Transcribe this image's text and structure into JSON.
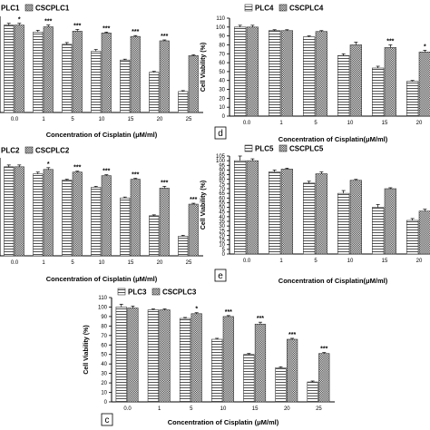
{
  "chart_data": [
    {
      "type": "bar",
      "panel": "",
      "legend": [
        "PLC1",
        "CSCPLC1"
      ],
      "ylabel": "",
      "xlabel": "Concentration of Cisplatin (μM/ml)",
      "categories": [
        "0.0",
        "1",
        "5",
        "10",
        "15",
        "20",
        "25"
      ],
      "ylim": [
        0,
        110
      ],
      "yticks": [],
      "series": [
        {
          "name": "PLC1",
          "values": [
            100,
            92,
            78,
            70,
            60,
            46,
            24
          ],
          "errors": [
            2,
            2,
            2,
            2,
            1,
            1,
            1
          ]
        },
        {
          "name": "CSCPLC1",
          "values": [
            100,
            98,
            93,
            91,
            87,
            82,
            65
          ],
          "errors": [
            2,
            2,
            2,
            1,
            1,
            1,
            1
          ]
        }
      ],
      "annotations": [
        "*",
        "***",
        "***",
        "***",
        "***",
        "***"
      ],
      "grid": false,
      "legend_position": "top-left"
    },
    {
      "type": "bar",
      "panel": "d",
      "legend": [
        "PLC4",
        "CSCPLC4"
      ],
      "ylabel": "Cell Viability (%)",
      "xlabel": "Concentration of Cisplatin(μM/ml)",
      "categories": [
        "0.0",
        "1",
        "5",
        "10",
        "15",
        "20"
      ],
      "ylim": [
        0,
        110
      ],
      "yticks": [
        "0",
        "10",
        "20",
        "30",
        "40",
        "50",
        "60",
        "70",
        "80",
        "90",
        "100",
        "110"
      ],
      "series": [
        {
          "name": "PLC4",
          "values": [
            100,
            96,
            89,
            68,
            54,
            39
          ],
          "errors": [
            2,
            1,
            1,
            2,
            2,
            1
          ]
        },
        {
          "name": "CSCPLC4",
          "values": [
            100,
            96,
            95,
            80,
            77,
            72
          ],
          "errors": [
            2,
            1,
            1,
            3,
            3,
            2
          ]
        }
      ],
      "annotations": [
        "",
        "",
        "",
        "",
        "***",
        "*"
      ],
      "grid": false,
      "legend_position": "top-left"
    },
    {
      "type": "bar",
      "panel": "",
      "legend": [
        "PLC2",
        "CSCPLC2"
      ],
      "ylabel": "",
      "xlabel": "Concentration of Cisplatin (μM/ml)",
      "categories": [
        "0.0",
        "1",
        "5",
        "10",
        "15",
        "20",
        "25"
      ],
      "ylim": [
        0,
        110
      ],
      "yticks": [],
      "series": [
        {
          "name": "PLC2",
          "values": [
            100,
            92,
            85,
            77,
            65,
            45,
            22
          ],
          "errors": [
            2,
            2,
            1,
            1,
            1,
            1,
            1
          ]
        },
        {
          "name": "CSCPLC2",
          "values": [
            100,
            97,
            94,
            90,
            86,
            76,
            58
          ],
          "errors": [
            2,
            2,
            1,
            1,
            1,
            2,
            1
          ]
        }
      ],
      "annotations": [
        "",
        "*",
        "***",
        "***",
        "***",
        "***",
        "***"
      ],
      "grid": false,
      "legend_position": "top-left"
    },
    {
      "type": "bar",
      "panel": "e",
      "legend": [
        "PLC5",
        "CSCPLC5"
      ],
      "ylabel": "Cell Viability (%)",
      "xlabel": "Concentration of Cisplatin(μM/ml)",
      "categories": [
        "0.0",
        "1",
        "5",
        "10",
        "15",
        "20"
      ],
      "ylim": [
        0,
        105
      ],
      "yticks": [
        "0",
        "5",
        "10",
        "15",
        "20",
        "25",
        "30",
        "35",
        "40",
        "45",
        "50",
        "55",
        "60",
        "65",
        "70",
        "75",
        "80",
        "85",
        "90",
        "95",
        "100",
        "105"
      ],
      "series": [
        {
          "name": "PLC5",
          "values": [
            100,
            88,
            76,
            65,
            50,
            36
          ],
          "errors": [
            5,
            2,
            2,
            3,
            3,
            2
          ]
        },
        {
          "name": "CSCPLC5",
          "values": [
            100,
            91,
            86,
            79,
            70,
            46
          ],
          "errors": [
            2,
            1,
            2,
            1,
            1,
            2
          ]
        }
      ],
      "annotations": [],
      "grid": false,
      "legend_position": "top-left"
    },
    {
      "type": "bar",
      "panel": "c",
      "legend": [
        "PLC3",
        "CSCPLC3"
      ],
      "ylabel": "Cell Viability (%)",
      "xlabel": "Concentration of Cisplatin (μM/ml)",
      "categories": [
        "0.0",
        "1",
        "5",
        "10",
        "15",
        "20",
        "25"
      ],
      "ylim": [
        0,
        110
      ],
      "yticks": [
        "0",
        "10",
        "20",
        "30",
        "40",
        "50",
        "60",
        "70",
        "80",
        "90",
        "100",
        "110"
      ],
      "series": [
        {
          "name": "PLC3",
          "values": [
            100,
            97,
            88,
            66,
            50,
            36,
            21
          ],
          "errors": [
            3,
            1,
            1,
            1,
            1,
            1,
            1
          ]
        },
        {
          "name": "CSCPLC3",
          "values": [
            99,
            97,
            93,
            90,
            82,
            66,
            51
          ],
          "errors": [
            2,
            1,
            1,
            1,
            2,
            1,
            1
          ]
        }
      ],
      "annotations": [
        "",
        "",
        "*",
        "***",
        "***",
        "***",
        "***"
      ],
      "grid": false,
      "legend_position": "top-left"
    }
  ]
}
